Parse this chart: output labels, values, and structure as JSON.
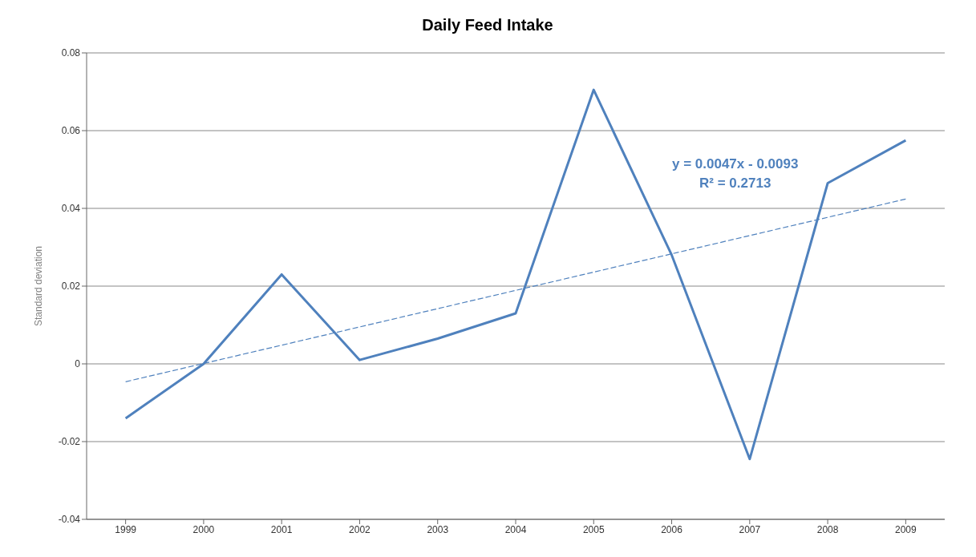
{
  "chart_data": {
    "type": "line",
    "title": "Daily Feed Intake",
    "ylabel": "Standard deviation",
    "x": [
      1999,
      2000,
      2001,
      2002,
      2003,
      2004,
      2005,
      2006,
      2007,
      2008,
      2009
    ],
    "series": [
      {
        "color": "#4f81bd",
        "values": [
          -0.014,
          0,
          0.023,
          0.001,
          0.0065,
          0.013,
          0.0705,
          0.028,
          -0.0245,
          0.0465,
          0.0575
        ]
      },
      {
        "type": "line",
        "color": "#4f81bd",
        "line_style": "dashed",
        "x": [
          1999,
          2009
        ],
        "values": [
          -0.0046,
          0.0424
        ]
      }
    ],
    "xlim": [
      1998.5,
      2009.5
    ],
    "xticks": [
      1999,
      2000,
      2001,
      2002,
      2003,
      2004,
      2005,
      2006,
      2007,
      2008,
      2009
    ],
    "ylim": [
      -0.04,
      0.08
    ],
    "yticks": [
      -0.04,
      -0.02,
      0,
      0.02,
      0.04,
      0.06,
      0.08
    ],
    "grid": "y",
    "legend": false,
    "marker": "none",
    "line_style": "solid",
    "annotations": [
      "y = 0.0047x - 0.0093",
      "R² = 0.2713"
    ]
  }
}
